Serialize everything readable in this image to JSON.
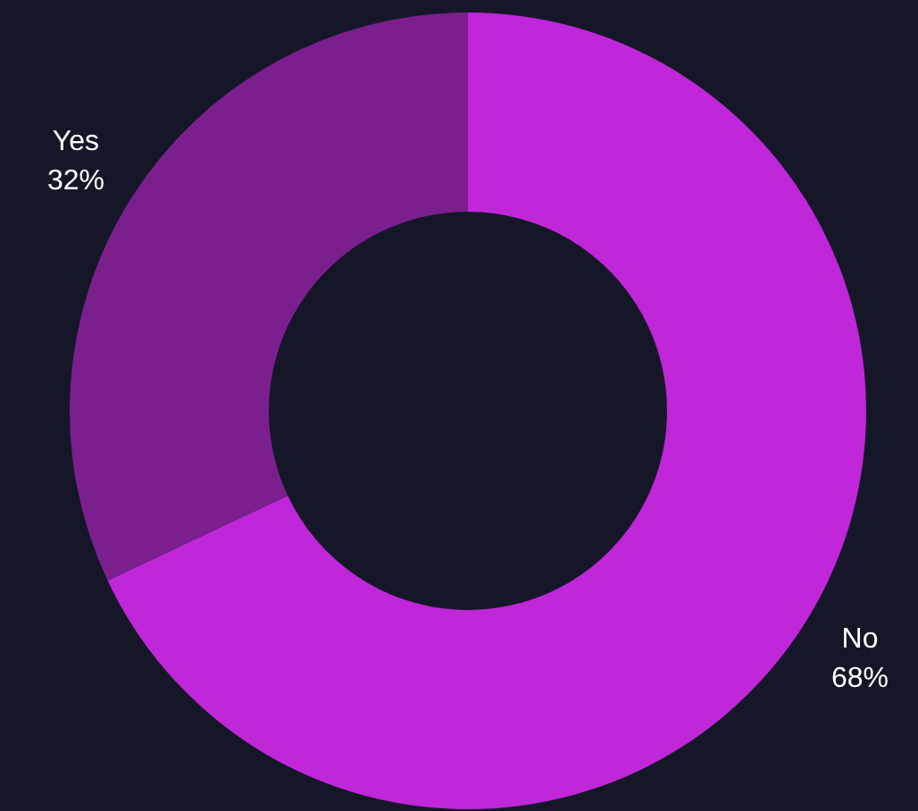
{
  "chart_data": {
    "type": "donut",
    "categories": [
      "No",
      "Yes"
    ],
    "values": [
      68,
      32
    ],
    "colors": [
      "#bf27d9",
      "#7b1f8e"
    ],
    "value_labels": [
      "68%",
      "32%"
    ],
    "legend": false
  }
}
